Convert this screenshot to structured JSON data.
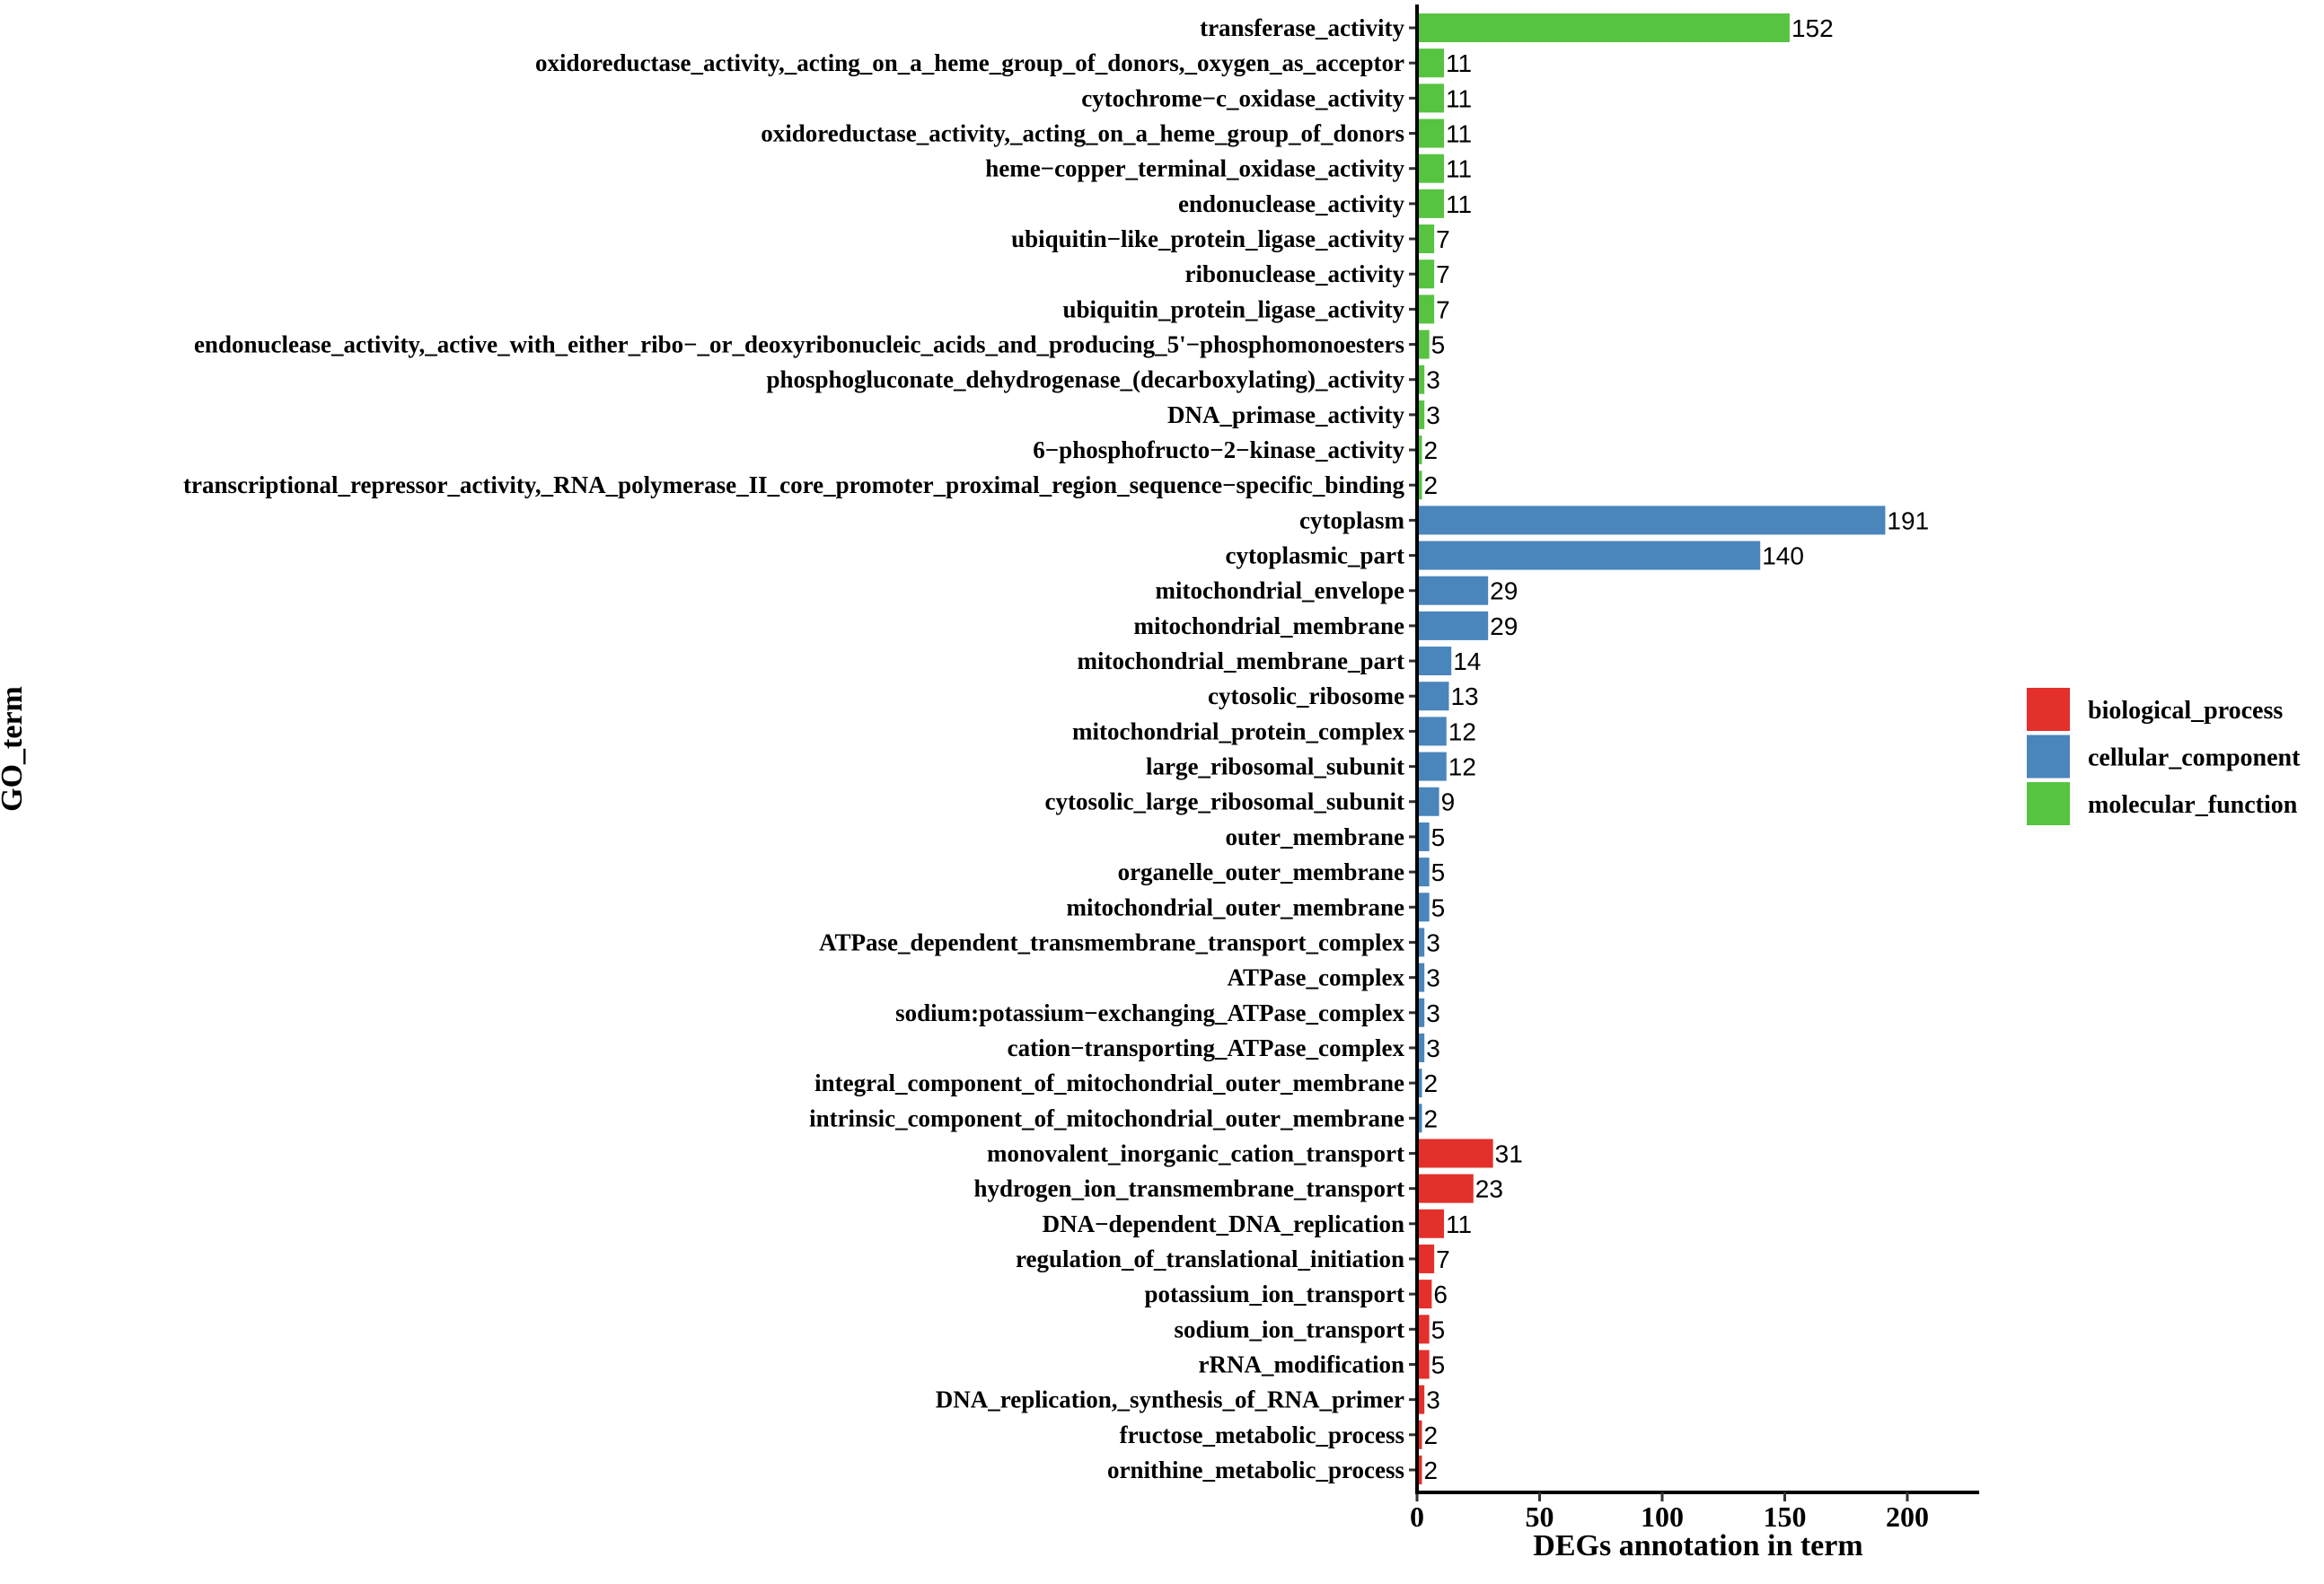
{
  "chart_data": {
    "type": "bar",
    "orientation": "horizontal",
    "title": "",
    "xlabel": "DEGs annotation in term",
    "ylabel": "GO_term",
    "xlim": [
      0,
      230
    ],
    "xticks": [
      0,
      50,
      100,
      150,
      200
    ],
    "grid": false,
    "legend_position": "right",
    "legend": [
      {
        "name": "biological_process",
        "color": "#E3302A"
      },
      {
        "name": "cellular_component",
        "color": "#4A85BC"
      },
      {
        "name": "molecular_function",
        "color": "#56C440"
      }
    ],
    "bars": [
      {
        "label": "transferase_activity",
        "value": 152,
        "category": "molecular_function"
      },
      {
        "label": "oxidoreductase_activity,_acting_on_a_heme_group_of_donors,_oxygen_as_acceptor",
        "value": 11,
        "category": "molecular_function"
      },
      {
        "label": "cytochrome−c_oxidase_activity",
        "value": 11,
        "category": "molecular_function"
      },
      {
        "label": "oxidoreductase_activity,_acting_on_a_heme_group_of_donors",
        "value": 11,
        "category": "molecular_function"
      },
      {
        "label": "heme−copper_terminal_oxidase_activity",
        "value": 11,
        "category": "molecular_function"
      },
      {
        "label": "endonuclease_activity",
        "value": 11,
        "category": "molecular_function"
      },
      {
        "label": "ubiquitin−like_protein_ligase_activity",
        "value": 7,
        "category": "molecular_function"
      },
      {
        "label": "ribonuclease_activity",
        "value": 7,
        "category": "molecular_function"
      },
      {
        "label": "ubiquitin_protein_ligase_activity",
        "value": 7,
        "category": "molecular_function"
      },
      {
        "label": "endonuclease_activity,_active_with_either_ribo−_or_deoxyribonucleic_acids_and_producing_5'−phosphomonoesters",
        "value": 5,
        "category": "molecular_function"
      },
      {
        "label": "phosphogluconate_dehydrogenase_(decarboxylating)_activity",
        "value": 3,
        "category": "molecular_function"
      },
      {
        "label": "DNA_primase_activity",
        "value": 3,
        "category": "molecular_function"
      },
      {
        "label": "6−phosphofructo−2−kinase_activity",
        "value": 2,
        "category": "molecular_function"
      },
      {
        "label": "transcriptional_repressor_activity,_RNA_polymerase_II_core_promoter_proximal_region_sequence−specific_binding",
        "value": 2,
        "category": "molecular_function"
      },
      {
        "label": "cytoplasm",
        "value": 191,
        "category": "cellular_component"
      },
      {
        "label": "cytoplasmic_part",
        "value": 140,
        "category": "cellular_component"
      },
      {
        "label": "mitochondrial_envelope",
        "value": 29,
        "category": "cellular_component"
      },
      {
        "label": "mitochondrial_membrane",
        "value": 29,
        "category": "cellular_component"
      },
      {
        "label": "mitochondrial_membrane_part",
        "value": 14,
        "category": "cellular_component"
      },
      {
        "label": "cytosolic_ribosome",
        "value": 13,
        "category": "cellular_component"
      },
      {
        "label": "mitochondrial_protein_complex",
        "value": 12,
        "category": "cellular_component"
      },
      {
        "label": "large_ribosomal_subunit",
        "value": 12,
        "category": "cellular_component"
      },
      {
        "label": "cytosolic_large_ribosomal_subunit",
        "value": 9,
        "category": "cellular_component"
      },
      {
        "label": "outer_membrane",
        "value": 5,
        "category": "cellular_component"
      },
      {
        "label": "organelle_outer_membrane",
        "value": 5,
        "category": "cellular_component"
      },
      {
        "label": "mitochondrial_outer_membrane",
        "value": 5,
        "category": "cellular_component"
      },
      {
        "label": "ATPase_dependent_transmembrane_transport_complex",
        "value": 3,
        "category": "cellular_component"
      },
      {
        "label": "ATPase_complex",
        "value": 3,
        "category": "cellular_component"
      },
      {
        "label": "sodium:potassium−exchanging_ATPase_complex",
        "value": 3,
        "category": "cellular_component"
      },
      {
        "label": "cation−transporting_ATPase_complex",
        "value": 3,
        "category": "cellular_component"
      },
      {
        "label": "integral_component_of_mitochondrial_outer_membrane",
        "value": 2,
        "category": "cellular_component"
      },
      {
        "label": "intrinsic_component_of_mitochondrial_outer_membrane",
        "value": 2,
        "category": "cellular_component"
      },
      {
        "label": "monovalent_inorganic_cation_transport",
        "value": 31,
        "category": "biological_process"
      },
      {
        "label": "hydrogen_ion_transmembrane_transport",
        "value": 23,
        "category": "biological_process"
      },
      {
        "label": "DNA−dependent_DNA_replication",
        "value": 11,
        "category": "biological_process"
      },
      {
        "label": "regulation_of_translational_initiation",
        "value": 7,
        "category": "biological_process"
      },
      {
        "label": "potassium_ion_transport",
        "value": 6,
        "category": "biological_process"
      },
      {
        "label": "sodium_ion_transport",
        "value": 5,
        "category": "biological_process"
      },
      {
        "label": "rRNA_modification",
        "value": 5,
        "category": "biological_process"
      },
      {
        "label": "DNA_replication,_synthesis_of_RNA_primer",
        "value": 3,
        "category": "biological_process"
      },
      {
        "label": "fructose_metabolic_process",
        "value": 2,
        "category": "biological_process"
      },
      {
        "label": "ornithine_metabolic_process",
        "value": 2,
        "category": "biological_process"
      }
    ]
  }
}
